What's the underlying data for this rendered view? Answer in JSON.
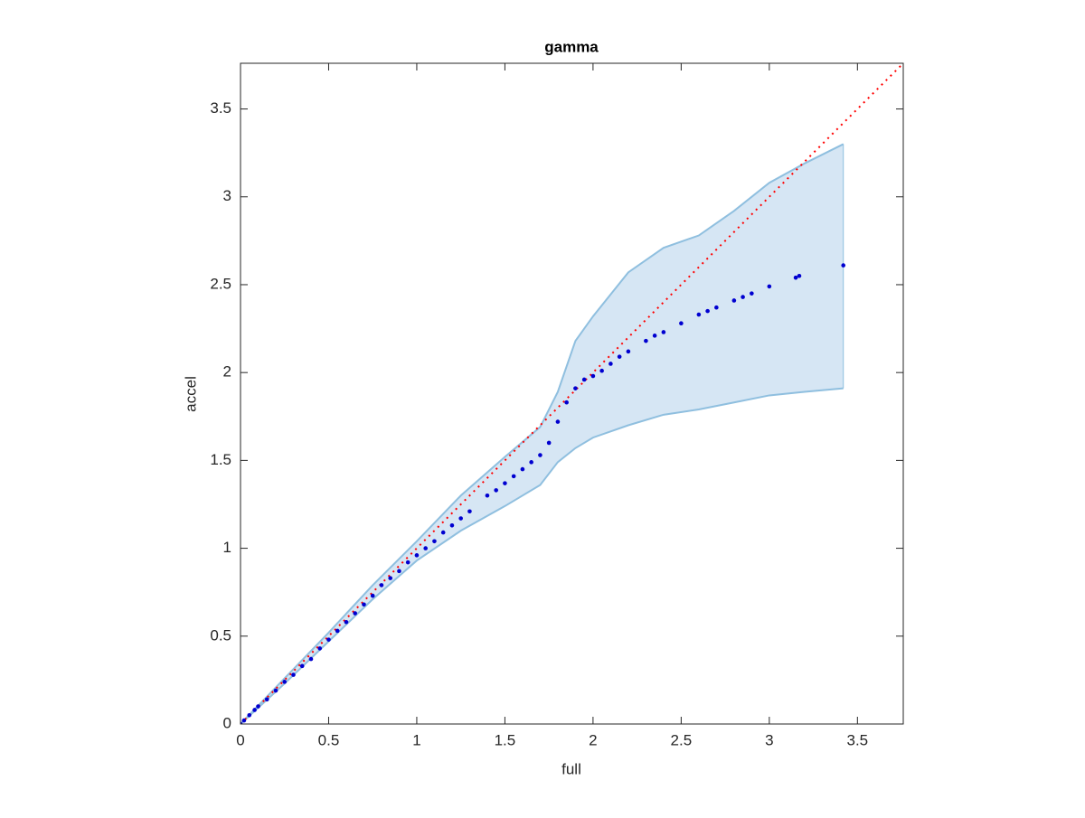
{
  "chart_data": {
    "type": "scatter",
    "title": "gamma",
    "x_label": "full",
    "y_label": "accel",
    "xlim": [
      0,
      3.76
    ],
    "ylim": [
      0,
      3.76
    ],
    "xticks": [
      0,
      0.5,
      1,
      1.5,
      2,
      2.5,
      3,
      3.5
    ],
    "yticks": [
      0,
      0.5,
      1,
      1.5,
      2,
      2.5,
      3,
      3.5
    ],
    "points": {
      "color": "#0000d0",
      "x": [
        0,
        0.02,
        0.05,
        0.08,
        0.1,
        0.15,
        0.2,
        0.25,
        0.3,
        0.35,
        0.4,
        0.45,
        0.5,
        0.55,
        0.6,
        0.65,
        0.7,
        0.75,
        0.8,
        0.85,
        0.9,
        0.95,
        1.0,
        1.05,
        1.1,
        1.15,
        1.2,
        1.25,
        1.3,
        1.4,
        1.45,
        1.5,
        1.55,
        1.6,
        1.65,
        1.7,
        1.75,
        1.8,
        1.85,
        1.9,
        1.95,
        2.0,
        2.05,
        2.1,
        2.15,
        2.2,
        2.3,
        2.35,
        2.4,
        2.5,
        2.6,
        2.65,
        2.7,
        2.8,
        2.85,
        2.9,
        3.0,
        3.15,
        3.17,
        3.42
      ],
      "y": [
        0,
        0.02,
        0.05,
        0.08,
        0.1,
        0.14,
        0.19,
        0.24,
        0.28,
        0.33,
        0.37,
        0.43,
        0.48,
        0.53,
        0.58,
        0.63,
        0.68,
        0.73,
        0.79,
        0.83,
        0.87,
        0.92,
        0.96,
        1.0,
        1.04,
        1.09,
        1.13,
        1.17,
        1.21,
        1.3,
        1.33,
        1.37,
        1.41,
        1.45,
        1.49,
        1.53,
        1.6,
        1.72,
        1.83,
        1.91,
        1.96,
        1.98,
        2.01,
        2.05,
        2.09,
        2.12,
        2.18,
        2.21,
        2.23,
        2.28,
        2.33,
        2.35,
        2.37,
        2.41,
        2.43,
        2.45,
        2.49,
        2.54,
        2.55,
        2.61
      ]
    },
    "band": {
      "color": "#d6e6f4",
      "edge_color": "#8fbfdf",
      "x": [
        0,
        0.25,
        0.5,
        0.75,
        1.0,
        1.25,
        1.5,
        1.7,
        1.8,
        1.9,
        2.0,
        2.2,
        2.4,
        2.6,
        2.8,
        3.0,
        3.2,
        3.42
      ],
      "upper": [
        0,
        0.26,
        0.52,
        0.79,
        1.04,
        1.3,
        1.52,
        1.69,
        1.89,
        2.18,
        2.32,
        2.57,
        2.71,
        2.78,
        2.92,
        3.08,
        3.19,
        3.3
      ],
      "lower": [
        0,
        0.23,
        0.47,
        0.71,
        0.93,
        1.1,
        1.24,
        1.36,
        1.49,
        1.57,
        1.63,
        1.7,
        1.76,
        1.79,
        1.83,
        1.87,
        1.89,
        1.91
      ]
    },
    "reference": {
      "color": "#ff0000",
      "x": [
        0,
        3.76
      ],
      "y": [
        0,
        3.76
      ]
    }
  }
}
